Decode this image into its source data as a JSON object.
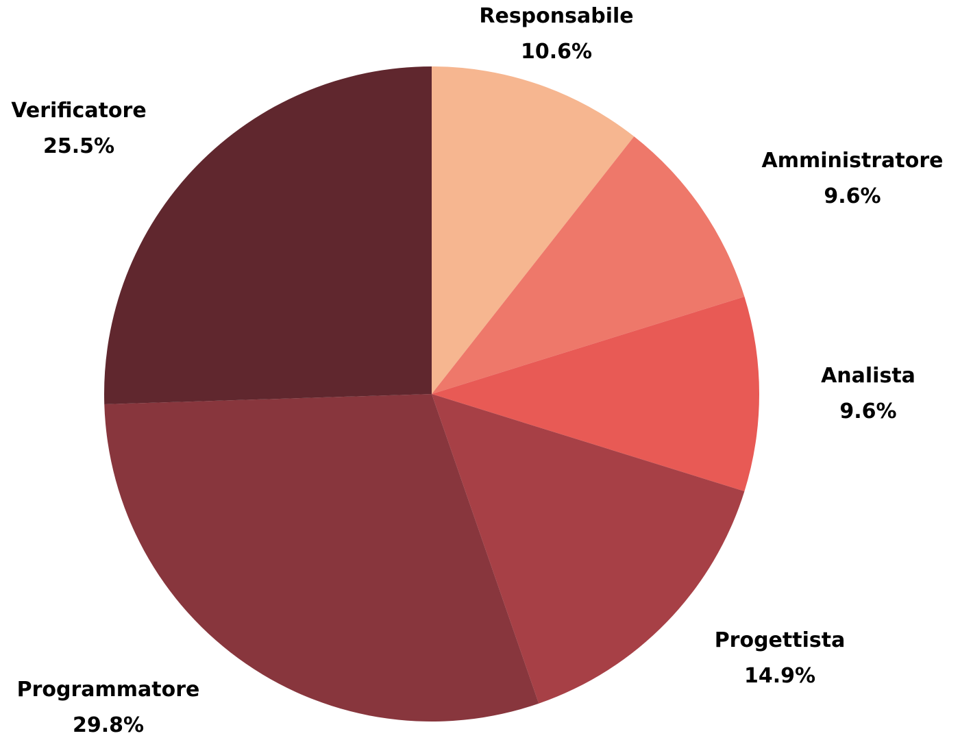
{
  "chart_data": {
    "type": "pie",
    "start_angle_deg": 0,
    "direction": "clockwise",
    "slices": [
      {
        "label": "Responsabile",
        "value": 10.6,
        "value_label": "10.6%",
        "color": "#F6B690"
      },
      {
        "label": "Amministratore",
        "value": 9.6,
        "value_label": "9.6%",
        "color": "#EE786A"
      },
      {
        "label": "Analista",
        "value": 9.6,
        "value_label": "9.6%",
        "color": "#E85A55"
      },
      {
        "label": "Progettista",
        "value": 14.9,
        "value_label": "14.9%",
        "color": "#A74046"
      },
      {
        "label": "Programmatore",
        "value": 29.8,
        "value_label": "29.8%",
        "color": "#88363D"
      },
      {
        "label": "Verificatore",
        "value": 25.5,
        "value_label": "25.5%",
        "color": "#60272E"
      }
    ]
  }
}
